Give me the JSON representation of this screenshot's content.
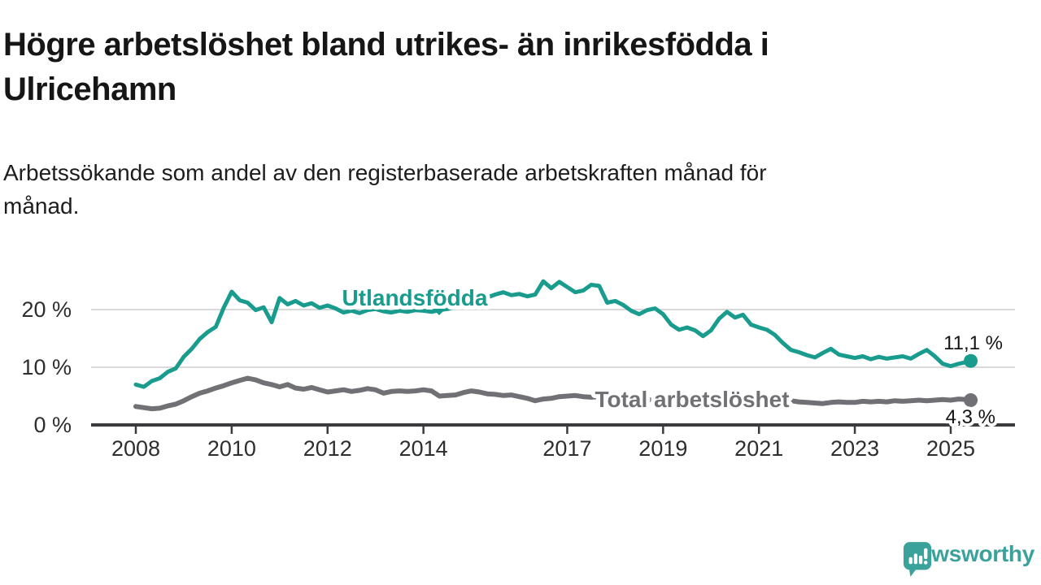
{
  "header": {
    "title_lines": [
      "Högre arbetslöshet bland utrikes- än inrikesfödda i",
      "Ulricehamn"
    ],
    "subtitle_lines": [
      "Arbetssökande som andel av den registerbaserade arbetskraften månad för",
      "månad."
    ]
  },
  "chart_data": {
    "type": "line",
    "title": "Högre arbetslöshet bland utrikes- än inrikesfödda i Ulricehamn",
    "subtitle": "Arbetssökande som andel av den registerbaserade arbetskraften månad för månad.",
    "unit": "%",
    "x_unit": "decimal_year",
    "grid": "horizontal",
    "legend_position": "inline-labels",
    "xlim": [
      2007.07,
      2026.34
    ],
    "ylim": [
      0,
      28
    ],
    "xticks": [
      2008,
      2010,
      2012,
      2014,
      2017,
      2019,
      2021,
      2023,
      2025
    ],
    "xtick_labels": [
      "2008",
      "2010",
      "2012",
      "2014",
      "2017",
      "2019",
      "2021",
      "2023",
      "2025"
    ],
    "yticks": [
      0,
      10,
      20
    ],
    "ytick_labels": [
      "0 %",
      "10 %",
      "20 %"
    ],
    "axis_color": "#3a3a3f",
    "grid_color": "#d9d9d9",
    "x": [
      2008,
      2008.167,
      2008.333,
      2008.5,
      2008.667,
      2008.833,
      2009,
      2009.167,
      2009.333,
      2009.5,
      2009.667,
      2009.833,
      2010,
      2010.167,
      2010.333,
      2010.5,
      2010.667,
      2010.833,
      2011,
      2011.167,
      2011.333,
      2011.5,
      2011.667,
      2011.833,
      2012,
      2012.167,
      2012.333,
      2012.5,
      2012.667,
      2012.833,
      2013,
      2013.167,
      2013.333,
      2013.5,
      2013.667,
      2013.833,
      2014,
      2014.167,
      2014.333,
      2014.5,
      2014.667,
      2014.833,
      2015,
      2015.167,
      2015.333,
      2015.5,
      2015.667,
      2015.833,
      2016,
      2016.167,
      2016.333,
      2016.5,
      2016.667,
      2016.833,
      2017,
      2017.167,
      2017.333,
      2017.5,
      2017.667,
      2017.833,
      2018,
      2018.167,
      2018.333,
      2018.5,
      2018.667,
      2018.833,
      2019,
      2019.167,
      2019.333,
      2019.5,
      2019.667,
      2019.833,
      2020,
      2020.167,
      2020.333,
      2020.5,
      2020.667,
      2020.833,
      2021,
      2021.167,
      2021.333,
      2021.5,
      2021.667,
      2021.833,
      2022,
      2022.167,
      2022.333,
      2022.5,
      2022.667,
      2022.833,
      2023,
      2023.167,
      2023.333,
      2023.5,
      2023.667,
      2023.833,
      2024,
      2024.167,
      2024.333,
      2024.5,
      2024.667,
      2024.833,
      2025,
      2025.167,
      2025.333,
      2025.417
    ],
    "series": [
      {
        "name": "Utlandsfödda",
        "color": "#199c8e",
        "end_label": "11,1 %",
        "end_value": 11.1,
        "values": [
          7.0,
          6.6,
          7.6,
          8.1,
          9.2,
          9.8,
          11.8,
          13.2,
          14.9,
          16.1,
          17.0,
          20.3,
          23.1,
          21.6,
          21.2,
          19.9,
          20.4,
          17.8,
          22.0,
          20.9,
          21.5,
          20.7,
          21.1,
          20.3,
          20.7,
          20.2,
          19.5,
          19.8,
          19.4,
          19.9,
          20.1,
          19.7,
          19.5,
          19.8,
          19.6,
          19.9,
          19.8,
          19.6,
          19.9,
          20.1,
          20.4,
          20.6,
          20.9,
          21.5,
          22.1,
          22.6,
          23.0,
          22.5,
          22.7,
          22.3,
          22.6,
          24.9,
          23.7,
          24.8,
          23.9,
          23.0,
          23.3,
          24.3,
          24.1,
          21.2,
          21.5,
          20.8,
          19.8,
          19.2,
          19.9,
          20.2,
          19.2,
          17.4,
          16.5,
          16.9,
          16.4,
          15.4,
          16.4,
          18.4,
          19.6,
          18.6,
          19.1,
          17.4,
          16.9,
          16.5,
          15.6,
          14.2,
          13.0,
          12.6,
          12.1,
          11.7,
          12.5,
          13.2,
          12.2,
          11.9,
          11.6,
          11.9,
          11.4,
          11.8,
          11.5,
          11.7,
          11.9,
          11.5,
          12.3,
          13.0,
          11.9,
          10.6,
          10.2,
          10.6,
          10.9,
          11.1
        ]
      },
      {
        "name": "Total arbetslöshet",
        "color": "#707075",
        "end_label": "4,3 %",
        "end_value": 4.3,
        "values": [
          3.2,
          3.0,
          2.8,
          2.9,
          3.3,
          3.6,
          4.2,
          4.9,
          5.5,
          5.9,
          6.4,
          6.8,
          7.3,
          7.7,
          8.1,
          7.8,
          7.3,
          7.0,
          6.6,
          7.0,
          6.4,
          6.2,
          6.5,
          6.1,
          5.7,
          5.9,
          6.1,
          5.8,
          6.0,
          6.3,
          6.1,
          5.5,
          5.8,
          5.9,
          5.8,
          5.9,
          6.1,
          5.9,
          5.0,
          5.1,
          5.2,
          5.6,
          5.9,
          5.7,
          5.4,
          5.3,
          5.1,
          5.2,
          4.9,
          4.6,
          4.2,
          4.5,
          4.6,
          4.9,
          5.0,
          5.1,
          4.9,
          4.8,
          4.9,
          4.7,
          4.6,
          4.5,
          4.4,
          4.5,
          4.4,
          4.3,
          4.2,
          4.1,
          4.2,
          4.1,
          4.0,
          4.1,
          4.3,
          4.8,
          5.1,
          5.0,
          4.9,
          4.7,
          4.6,
          4.5,
          4.4,
          4.3,
          4.2,
          4.0,
          3.9,
          3.8,
          3.7,
          3.9,
          4.0,
          3.9,
          3.9,
          4.1,
          4.0,
          4.1,
          4.0,
          4.2,
          4.1,
          4.2,
          4.3,
          4.2,
          4.3,
          4.4,
          4.3,
          4.5,
          4.4,
          4.3
        ]
      }
    ]
  },
  "branding": {
    "logo_text": "Newsworthy",
    "logo_color": "#3aa29a",
    "logo_icon": "speech-bubble-bar-chart-icon"
  }
}
